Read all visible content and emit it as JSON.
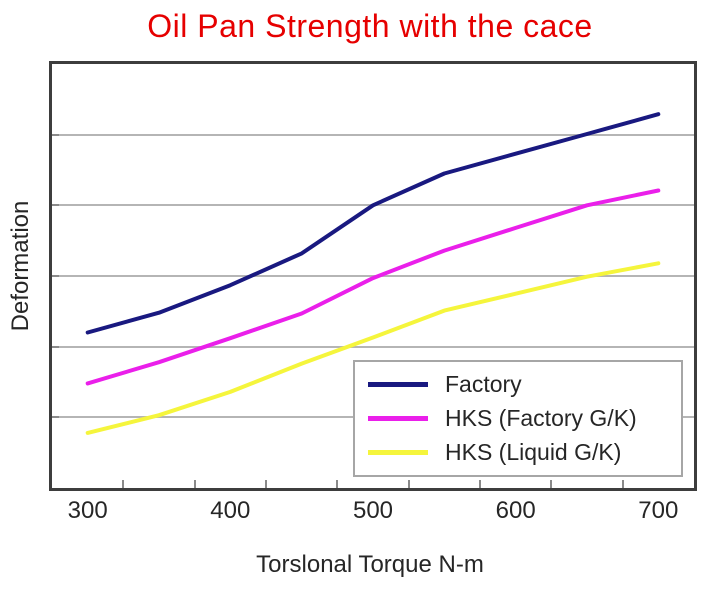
{
  "page": {
    "background": "#ffffff"
  },
  "chart_data": {
    "type": "line",
    "title": "Oil Pan Strength with the cace",
    "title_color": "#e60000",
    "xlabel": "Torslonal Torque N-m",
    "ylabel": "Deformation",
    "categories": [
      300,
      350,
      400,
      450,
      500,
      550,
      600,
      650,
      700
    ],
    "x_tick_labels": [
      "300",
      "400",
      "500",
      "600",
      "700"
    ],
    "y_axis": {
      "range": [
        0,
        6
      ],
      "gridline_interval": 1,
      "numeric_labels_shown": false
    },
    "grid": true,
    "legend": {
      "position": "inside-lower-right"
    },
    "series": [
      {
        "name": "Factory",
        "color": "#191980",
        "values": [
          2.2,
          2.48,
          2.87,
          3.32,
          4.0,
          4.45,
          4.73,
          5.01,
          5.29
        ]
      },
      {
        "name": "HKS (Factory G/K)",
        "color": "#ea1fea",
        "values": [
          1.48,
          1.78,
          2.12,
          2.47,
          2.97,
          3.36,
          3.68,
          4.0,
          4.21
        ]
      },
      {
        "name": "HKS (Liquid G/K)",
        "color": "#f5f53c",
        "values": [
          0.78,
          1.03,
          1.36,
          1.76,
          2.13,
          2.51,
          2.75,
          2.99,
          3.18
        ]
      }
    ],
    "style": {
      "axis_color": "#3d3d3d",
      "gridline_color": "#b5b5b5",
      "text_color": "#262626",
      "line_width": 4
    }
  }
}
